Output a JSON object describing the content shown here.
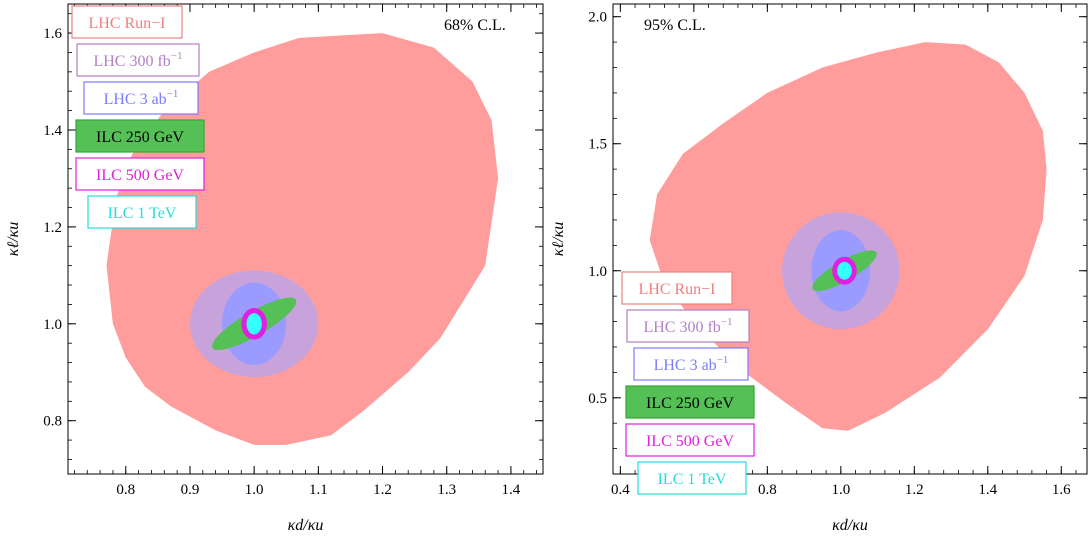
{
  "chart_data": [
    {
      "type": "contour",
      "annotation": "68% C.L.",
      "xlabel": "κd/κu",
      "ylabel": "κℓ/κu",
      "xlim": [
        0.71,
        1.45
      ],
      "ylim": [
        0.69,
        1.66
      ],
      "xticks": [
        0.8,
        0.9,
        1.0,
        1.1,
        1.2,
        1.3,
        1.4
      ],
      "xtick_labels": [
        "0.8",
        "0.9",
        "1.0",
        "1.1",
        "1.2",
        "1.3",
        "1.4"
      ],
      "yticks": [
        0.8,
        1.0,
        1.2,
        1.4,
        1.6
      ],
      "ytick_labels": [
        "0.8",
        "1.0",
        "1.2",
        "1.4",
        "1.6"
      ],
      "grid": false,
      "legend_position": "top-left",
      "series": [
        {
          "name": "LHC Run−I",
          "label": "LHC Run−I",
          "color": "#f08080",
          "fill": "#ff9c9c",
          "region": [
            [
              0.77,
              1.12
            ],
            [
              0.785,
              1.26
            ],
            [
              0.81,
              1.35
            ],
            [
              0.86,
              1.44
            ],
            [
              0.93,
              1.52
            ],
            [
              1.0,
              1.56
            ],
            [
              1.07,
              1.59
            ],
            [
              1.2,
              1.6
            ],
            [
              1.28,
              1.57
            ],
            [
              1.34,
              1.5
            ],
            [
              1.37,
              1.42
            ],
            [
              1.38,
              1.3
            ],
            [
              1.36,
              1.12
            ],
            [
              1.29,
              0.97
            ],
            [
              1.24,
              0.9
            ],
            [
              1.17,
              0.82
            ],
            [
              1.12,
              0.77
            ],
            [
              1.05,
              0.75
            ],
            [
              1.0,
              0.75
            ],
            [
              0.94,
              0.78
            ],
            [
              0.87,
              0.83
            ],
            [
              0.83,
              0.87
            ],
            [
              0.8,
              0.93
            ],
            [
              0.78,
              1.0
            ]
          ]
        },
        {
          "name": "LHC 300 fb−1",
          "label_main": "LHC 300 fb",
          "label_sup": "−1",
          "color": "#b27fc6",
          "fill": "#c8a3db",
          "center": [
            1.0,
            1.0
          ],
          "rx": 0.1,
          "ry": 0.11,
          "angle": 0
        },
        {
          "name": "LHC 3 ab−1",
          "label_main": "LHC 3 ab",
          "label_sup": "−1",
          "color": "#7b7bff",
          "fill": "#9a9aff",
          "center": [
            1.0,
            1.0
          ],
          "rx": 0.05,
          "ry": 0.085,
          "angle": 0
        },
        {
          "name": "ILC 250 GeV",
          "label": "ILC 250 GeV",
          "color": "#33aa33",
          "fill": "#55c055",
          "center": [
            1.0,
            1.0
          ],
          "rx": 0.075,
          "ry": 0.025,
          "angle": 30
        },
        {
          "name": "ILC 500 GeV",
          "label": "ILC 500 GeV",
          "color": "#e020e0",
          "fill": "#e020e0",
          "center": [
            1.0,
            1.0
          ],
          "rx": 0.018,
          "ry": 0.03,
          "angle": 0
        },
        {
          "name": "ILC 1 TeV",
          "label": "ILC 1 TeV",
          "color": "#22dddd",
          "fill": "#33ffff",
          "center": [
            1.0,
            1.0
          ],
          "rx": 0.012,
          "ry": 0.022,
          "angle": 0
        }
      ]
    },
    {
      "type": "contour",
      "annotation": "95% C.L.",
      "xlabel": "κd/κu",
      "ylabel": "κℓ/κu",
      "xlim": [
        0.38,
        1.67
      ],
      "ylim": [
        0.2,
        2.05
      ],
      "xticks": [
        0.4,
        0.6,
        0.8,
        1.0,
        1.2,
        1.4,
        1.6
      ],
      "xtick_labels": [
        "0.4",
        "0.6",
        "0.8",
        "1.0",
        "1.2",
        "1.4",
        "1.6"
      ],
      "yticks": [
        0.5,
        1.0,
        1.5,
        2.0
      ],
      "ytick_labels": [
        "0.5",
        "1.0",
        "1.5",
        "2.0"
      ],
      "grid": false,
      "legend_position": "bottom-left",
      "series": [
        {
          "name": "LHC Run−I",
          "label": "LHC Run−I",
          "color": "#f08080",
          "fill": "#ff9c9c",
          "region": [
            [
              0.48,
              1.12
            ],
            [
              0.5,
              1.3
            ],
            [
              0.57,
              1.46
            ],
            [
              0.68,
              1.58
            ],
            [
              0.8,
              1.7
            ],
            [
              0.95,
              1.8
            ],
            [
              1.1,
              1.86
            ],
            [
              1.23,
              1.9
            ],
            [
              1.34,
              1.89
            ],
            [
              1.43,
              1.82
            ],
            [
              1.5,
              1.7
            ],
            [
              1.55,
              1.55
            ],
            [
              1.56,
              1.4
            ],
            [
              1.55,
              1.2
            ],
            [
              1.5,
              0.98
            ],
            [
              1.4,
              0.77
            ],
            [
              1.27,
              0.58
            ],
            [
              1.12,
              0.44
            ],
            [
              1.02,
              0.37
            ],
            [
              0.95,
              0.38
            ],
            [
              0.85,
              0.48
            ],
            [
              0.72,
              0.62
            ],
            [
              0.6,
              0.8
            ],
            [
              0.52,
              0.95
            ]
          ]
        },
        {
          "name": "LHC 300 fb−1",
          "label_main": "LHC 300 fb",
          "label_sup": "−1",
          "color": "#b27fc6",
          "fill": "#c8a3db",
          "center": [
            1.0,
            1.0
          ],
          "rx": 0.16,
          "ry": 0.23,
          "angle": 0
        },
        {
          "name": "LHC 3 ab−1",
          "label_main": "LHC 3 ab",
          "label_sup": "−1",
          "color": "#7b7bff",
          "fill": "#9a9aff",
          "center": [
            1.0,
            1.0
          ],
          "rx": 0.08,
          "ry": 0.16,
          "angle": 0
        },
        {
          "name": "ILC 250 GeV",
          "label": "ILC 250 GeV",
          "color": "#33aa33",
          "fill": "#55c055",
          "center": [
            1.01,
            1.0
          ],
          "rx": 0.1,
          "ry": 0.04,
          "angle": 30
        },
        {
          "name": "ILC 500 GeV",
          "label": "ILC 500 GeV",
          "color": "#e020e0",
          "fill": "#e020e0",
          "center": [
            1.01,
            1.0
          ],
          "rx": 0.03,
          "ry": 0.05,
          "angle": 0
        },
        {
          "name": "ILC 1 TeV",
          "label": "ILC 1 TeV",
          "color": "#22dddd",
          "fill": "#33ffff",
          "center": [
            1.01,
            1.0
          ],
          "rx": 0.02,
          "ry": 0.035,
          "angle": 0
        }
      ]
    }
  ]
}
